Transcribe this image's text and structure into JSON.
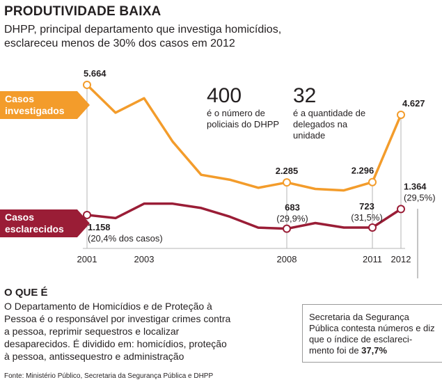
{
  "title": "PRODUTIVIDADE BAIXA",
  "subtitle": "DHPP, principal departamento que investiga homicídios, esclareceu menos de 30% dos casos em 2012",
  "colors": {
    "investigados": "#f39c2b",
    "esclarecidos": "#9a1d36"
  },
  "facts": [
    {
      "number": "400",
      "text": "é o número de policiais do DHPP"
    },
    {
      "number": "32",
      "text": "é a quantidade de delegados na unidade"
    }
  ],
  "what_is": {
    "title": "O QUE É",
    "text": "O Departamento de Homicídios e de Proteção à Pessoa é o responsável por investigar crimes contra a pessoa, reprimir sequestros e localizar desaparecidos. É dividido em:  homicídios, proteção à pessoa, antissequestro e administração"
  },
  "note": {
    "text": "Secretaria da Segurança Pública contesta números e diz que o índice de esclareci-mento foi de ",
    "value": "37,7%"
  },
  "source": "Fonte: Ministério Público, Secretaria da Segurança Pública e DHPP",
  "chart_data": {
    "type": "line",
    "x": [
      2001,
      2002,
      2003,
      2004,
      2005,
      2006,
      2007,
      2008,
      2009,
      2010,
      2011,
      2012
    ],
    "tick_labels": [
      "2001",
      "2003",
      "2008",
      "2011",
      "2012"
    ],
    "series": [
      {
        "name": "Casos investigados",
        "values": [
          5664,
          4700,
          5200,
          3700,
          2550,
          2380,
          2100,
          2285,
          2060,
          2010,
          2296,
          4627
        ],
        "labels": [
          {
            "year": 2001,
            "text": "5.664"
          },
          {
            "year": 2008,
            "text": "2.285"
          },
          {
            "year": 2011,
            "text": "2.296"
          },
          {
            "year": 2012,
            "text": "4.627"
          }
        ]
      },
      {
        "name": "Casos esclarecidos",
        "values": [
          1158,
          1050,
          1550,
          1550,
          1400,
          1100,
          720,
          683,
          880,
          723,
          723,
          1364
        ],
        "labels": [
          {
            "year": 2001,
            "text": "1.158",
            "sub": "(20,4% dos casos)"
          },
          {
            "year": 2008,
            "text": "683",
            "sub": "(29,9%)"
          },
          {
            "year": 2011,
            "text": "723",
            "sub": "(31,5%)"
          },
          {
            "year": 2012,
            "text": "1.364",
            "sub": "(29,5%)"
          }
        ]
      }
    ],
    "ylim": [
      0,
      6000
    ],
    "grid": false,
    "legend": "left"
  }
}
